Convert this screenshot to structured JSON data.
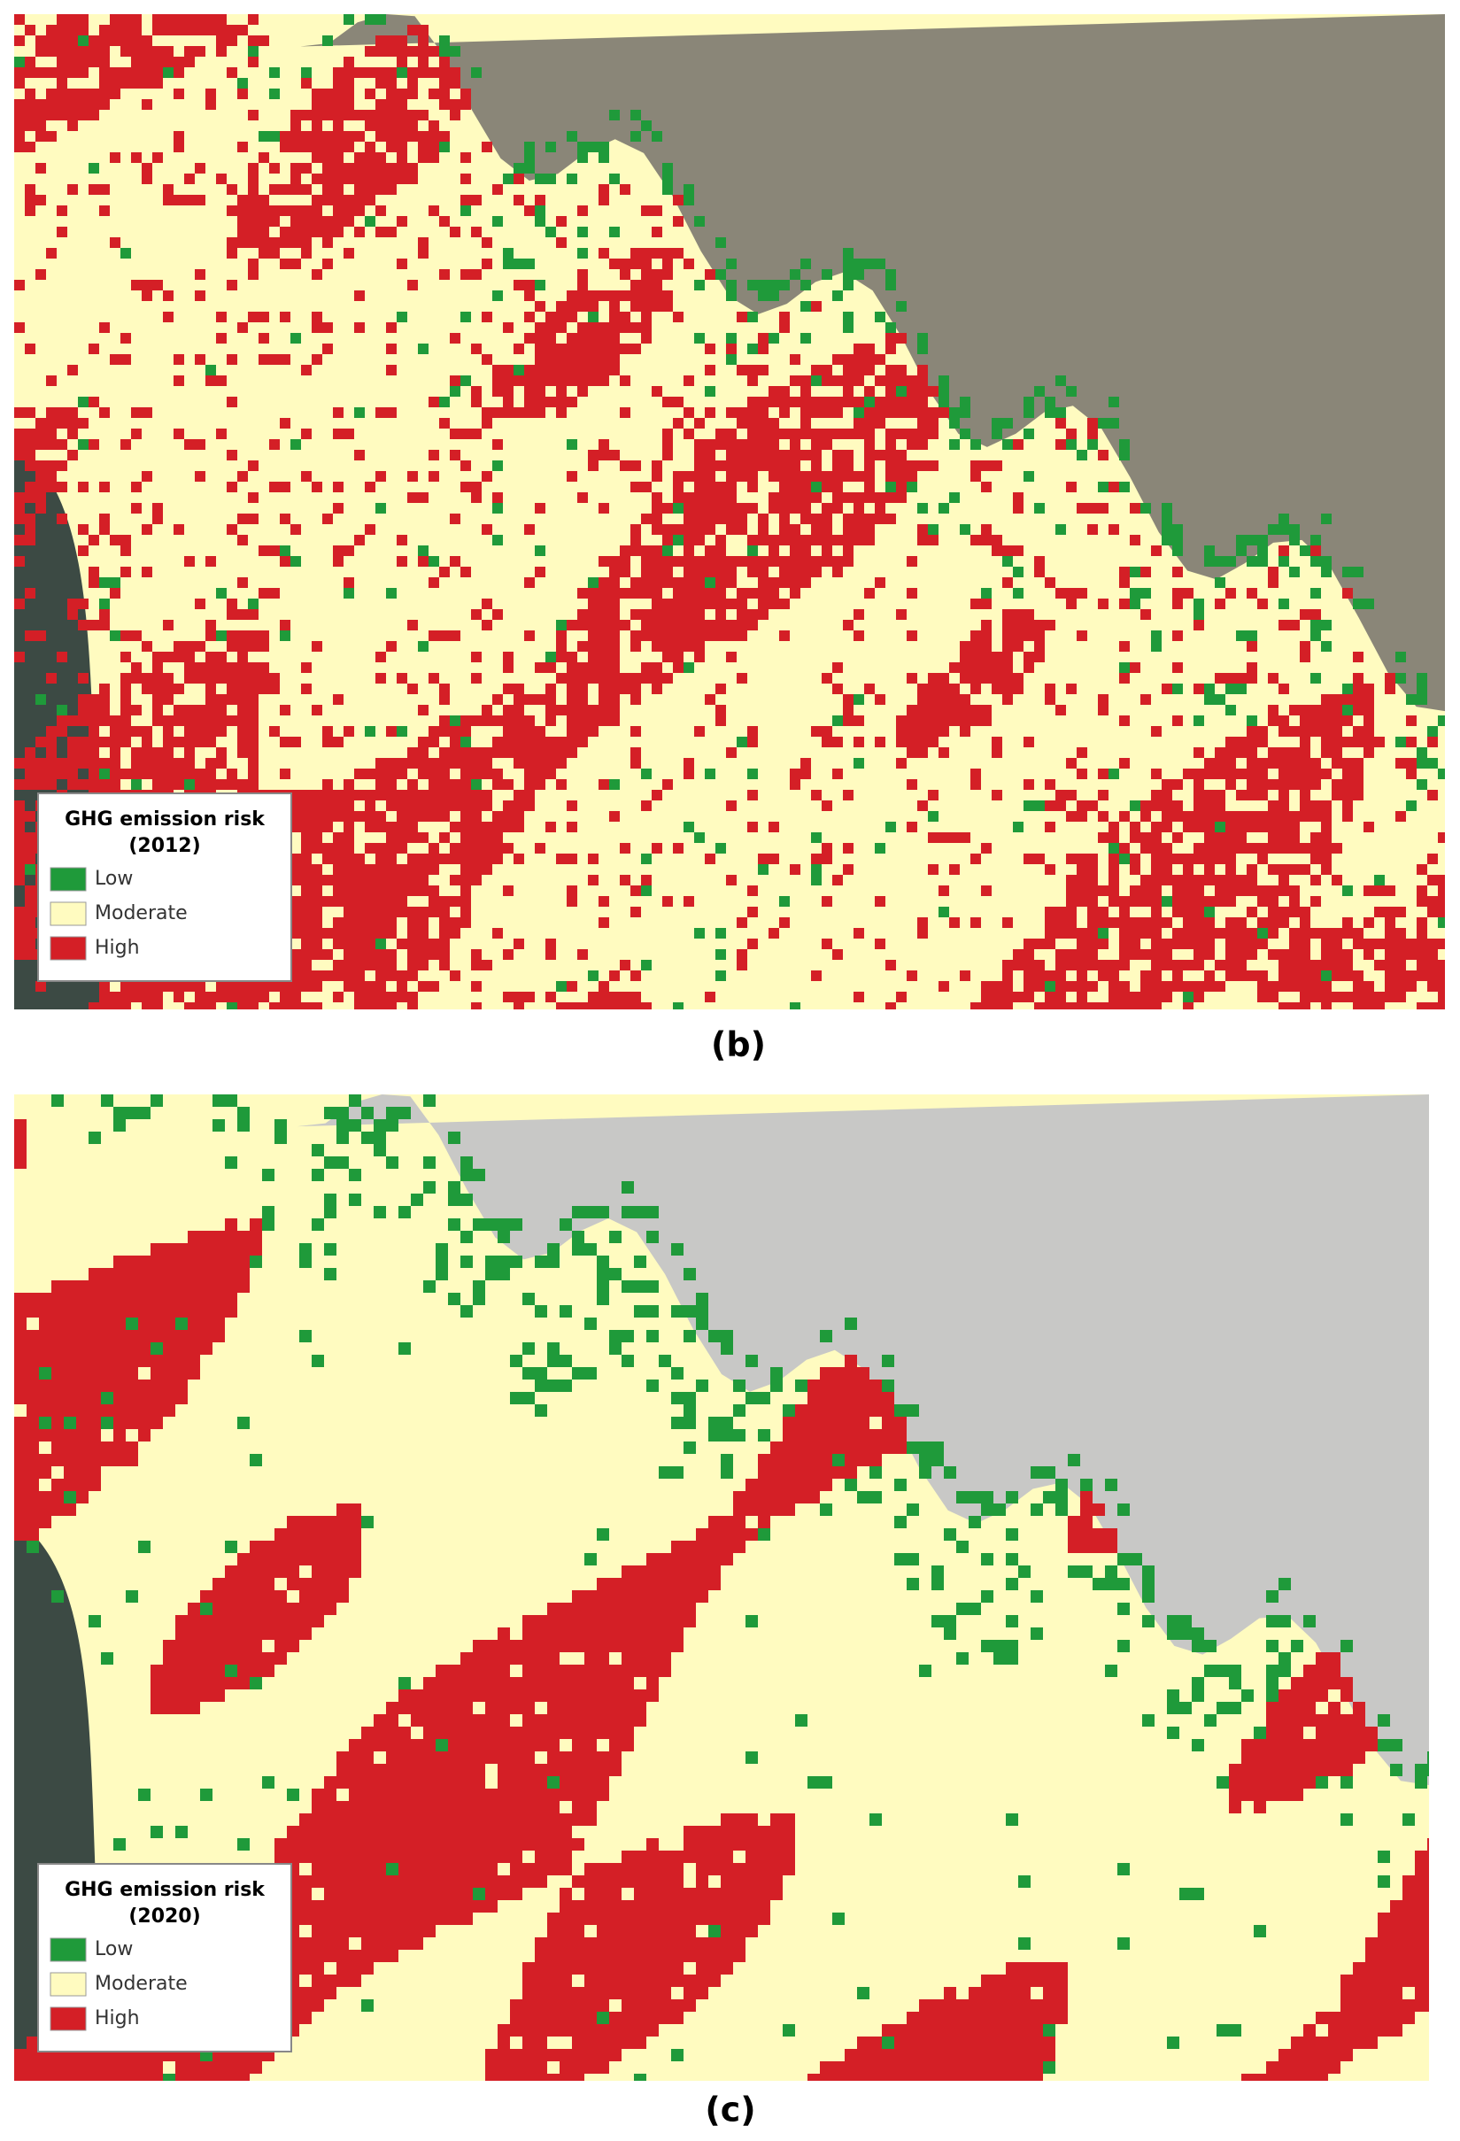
{
  "panels": [
    {
      "label": "(b)",
      "legend": {
        "title": "GHG emission risk",
        "subtitle": "(2012)",
        "items": [
          {
            "name": "Low",
            "color": "#1f9a3a"
          },
          {
            "name": "Moderate",
            "color": "#fffbc0"
          },
          {
            "name": "High",
            "color": "#d41f26"
          }
        ]
      }
    },
    {
      "label": "(c)",
      "legend": {
        "title": "GHG emission risk",
        "subtitle": "(2020)",
        "items": [
          {
            "name": "Low",
            "color": "#1f9a3a"
          },
          {
            "name": "Moderate",
            "color": "#fffbc0"
          },
          {
            "name": "High",
            "color": "#d41f26"
          }
        ]
      }
    }
  ]
}
